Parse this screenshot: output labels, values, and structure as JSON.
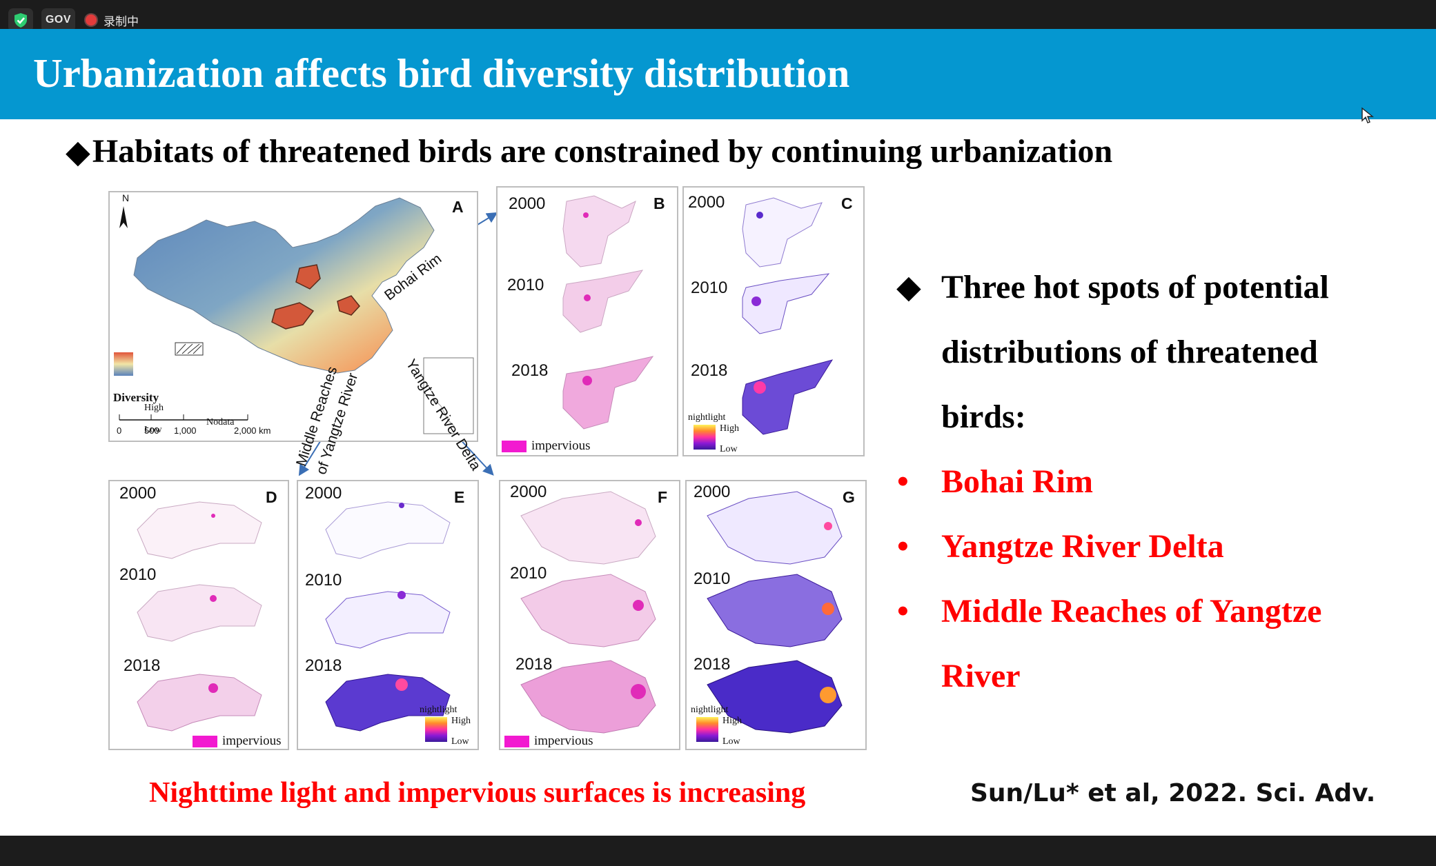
{
  "topbar": {
    "gov_label": "GOV",
    "recording_label": "录制中"
  },
  "slide": {
    "title": "Urbanization affects bird diversity distribution",
    "main_bullet": "Habitats of threatened birds are constrained by continuing urbanization",
    "right_heading": "Three hot spots of potential distributions of threatened birds:",
    "hotspots": [
      "Bohai Rim",
      "Yangtze River Delta",
      "Middle Reaches of Yangtze River"
    ],
    "caption": "Nighttime light and impervious surfaces is increasing",
    "citation": "Sun/Lu* et al, 2022. Sci. Adv."
  },
  "figure": {
    "panel_a": {
      "label": "A",
      "north": "N",
      "legend_title": "Diversity",
      "legend_high": "High",
      "legend_low": "Low",
      "nodata": "Nodata",
      "scale_ticks": [
        "0",
        "500",
        "1,000",
        "2,000 km"
      ],
      "region_labels": [
        "Bohai Rim",
        "Middle Reaches",
        "of Yangtze River",
        "Yangtze River Delta"
      ]
    },
    "years": [
      "2000",
      "2010",
      "2018"
    ],
    "panel_letters": [
      "B",
      "C",
      "D",
      "E",
      "F",
      "G"
    ],
    "impervious_label": "impervious",
    "nightlight_label": "nightlight",
    "nightlight_high": "High",
    "nightlight_low": "Low"
  },
  "colors": {
    "header": "#0597d0",
    "highlight_red": "#ff0000",
    "impervious": "#f21ad0"
  }
}
